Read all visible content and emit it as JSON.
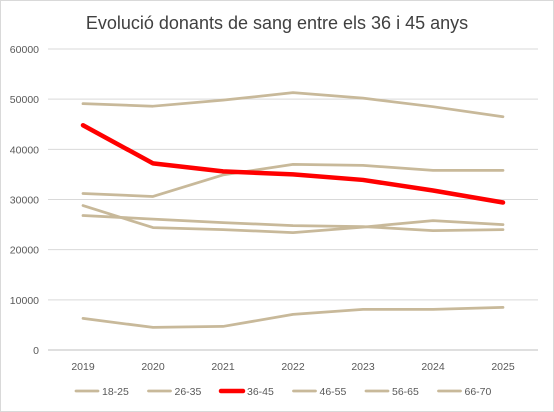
{
  "chart_data": {
    "type": "line",
    "title": "Evolució donants de sang entre els 36 i 45 anys",
    "xlabel": "",
    "ylabel": "",
    "x": [
      "2019",
      "2020",
      "2021",
      "2022",
      "2023",
      "2024",
      "2025"
    ],
    "ylim": [
      0,
      60000
    ],
    "yticks": [
      "0",
      "10000",
      "20000",
      "30000",
      "40000",
      "50000",
      "60000"
    ],
    "grid": true,
    "legend_position": "bottom",
    "series": [
      {
        "name": "18-25",
        "color": "#c8b99a",
        "highlight": false,
        "values": [
          6300,
          4500,
          4700,
          7100,
          8100,
          8100,
          8500
        ]
      },
      {
        "name": "26-35",
        "color": "#c8b99a",
        "highlight": false,
        "values": [
          28800,
          24400,
          24000,
          23400,
          24500,
          25800,
          25000
        ]
      },
      {
        "name": "36-45",
        "color": "#ff0000",
        "highlight": true,
        "values": [
          44800,
          37200,
          35600,
          35000,
          33900,
          31800,
          29400
        ]
      },
      {
        "name": "46-55",
        "color": "#c8b99a",
        "highlight": false,
        "values": [
          31200,
          30600,
          34900,
          37000,
          36800,
          35800,
          35800
        ]
      },
      {
        "name": "56-65",
        "color": "#c8b99a",
        "highlight": false,
        "values": [
          26800,
          26100,
          25400,
          24800,
          24600,
          23800,
          24000
        ]
      },
      {
        "name": "66-70",
        "color": "#c8b99a",
        "highlight": false,
        "values": [
          49100,
          48600,
          49800,
          51300,
          50200,
          48500,
          46500
        ]
      }
    ]
  }
}
